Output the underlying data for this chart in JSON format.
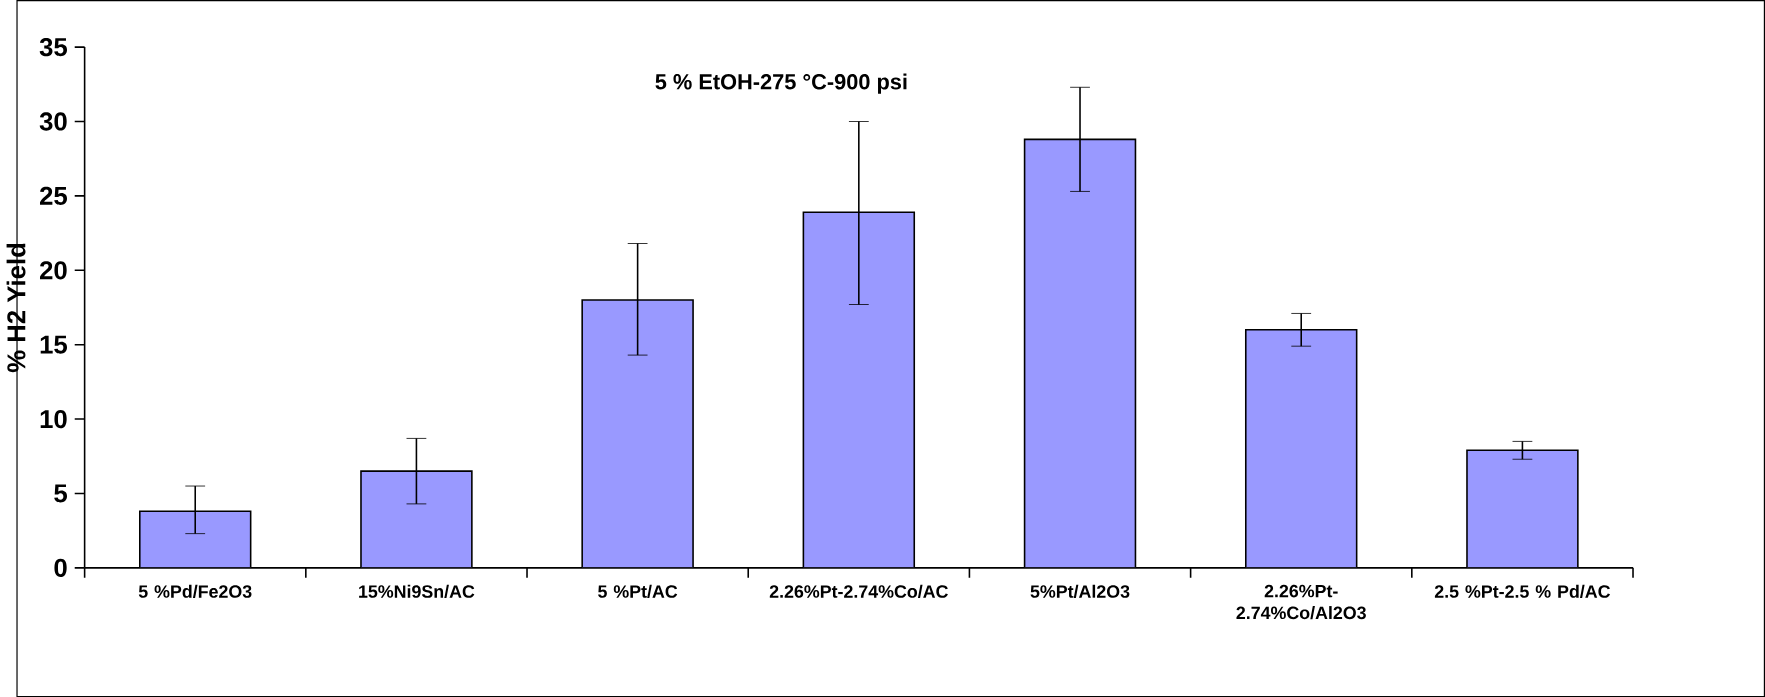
{
  "chart_data": {
    "type": "bar",
    "title": "5 % EtOH-275 °C-900 psi",
    "ylabel": "% H2 Yield",
    "categories": [
      "5 %Pd/Fe2O3",
      "15%Ni9Sn/AC",
      "5 %Pt/AC",
      "2.26%Pt-2.74%Co/AC",
      "5%Pt/Al2O3",
      "2.26%Pt-2.74%Co/Al2O3",
      "2.5 %Pt-2.5 % Pd/AC"
    ],
    "values": [
      3.8,
      6.5,
      18.0,
      23.9,
      28.8,
      16.0,
      7.9
    ],
    "errors": [
      [
        2.3,
        5.5
      ],
      [
        4.3,
        8.7
      ],
      [
        14.3,
        21.8
      ],
      [
        17.7,
        30.0
      ],
      [
        25.3,
        32.3
      ],
      [
        14.9,
        17.1
      ],
      [
        7.3,
        8.5
      ]
    ],
    "color": "#9999ff",
    "ylim": [
      0,
      35
    ],
    "yticks": [
      0,
      5,
      10,
      15,
      20,
      25,
      30,
      35
    ]
  }
}
